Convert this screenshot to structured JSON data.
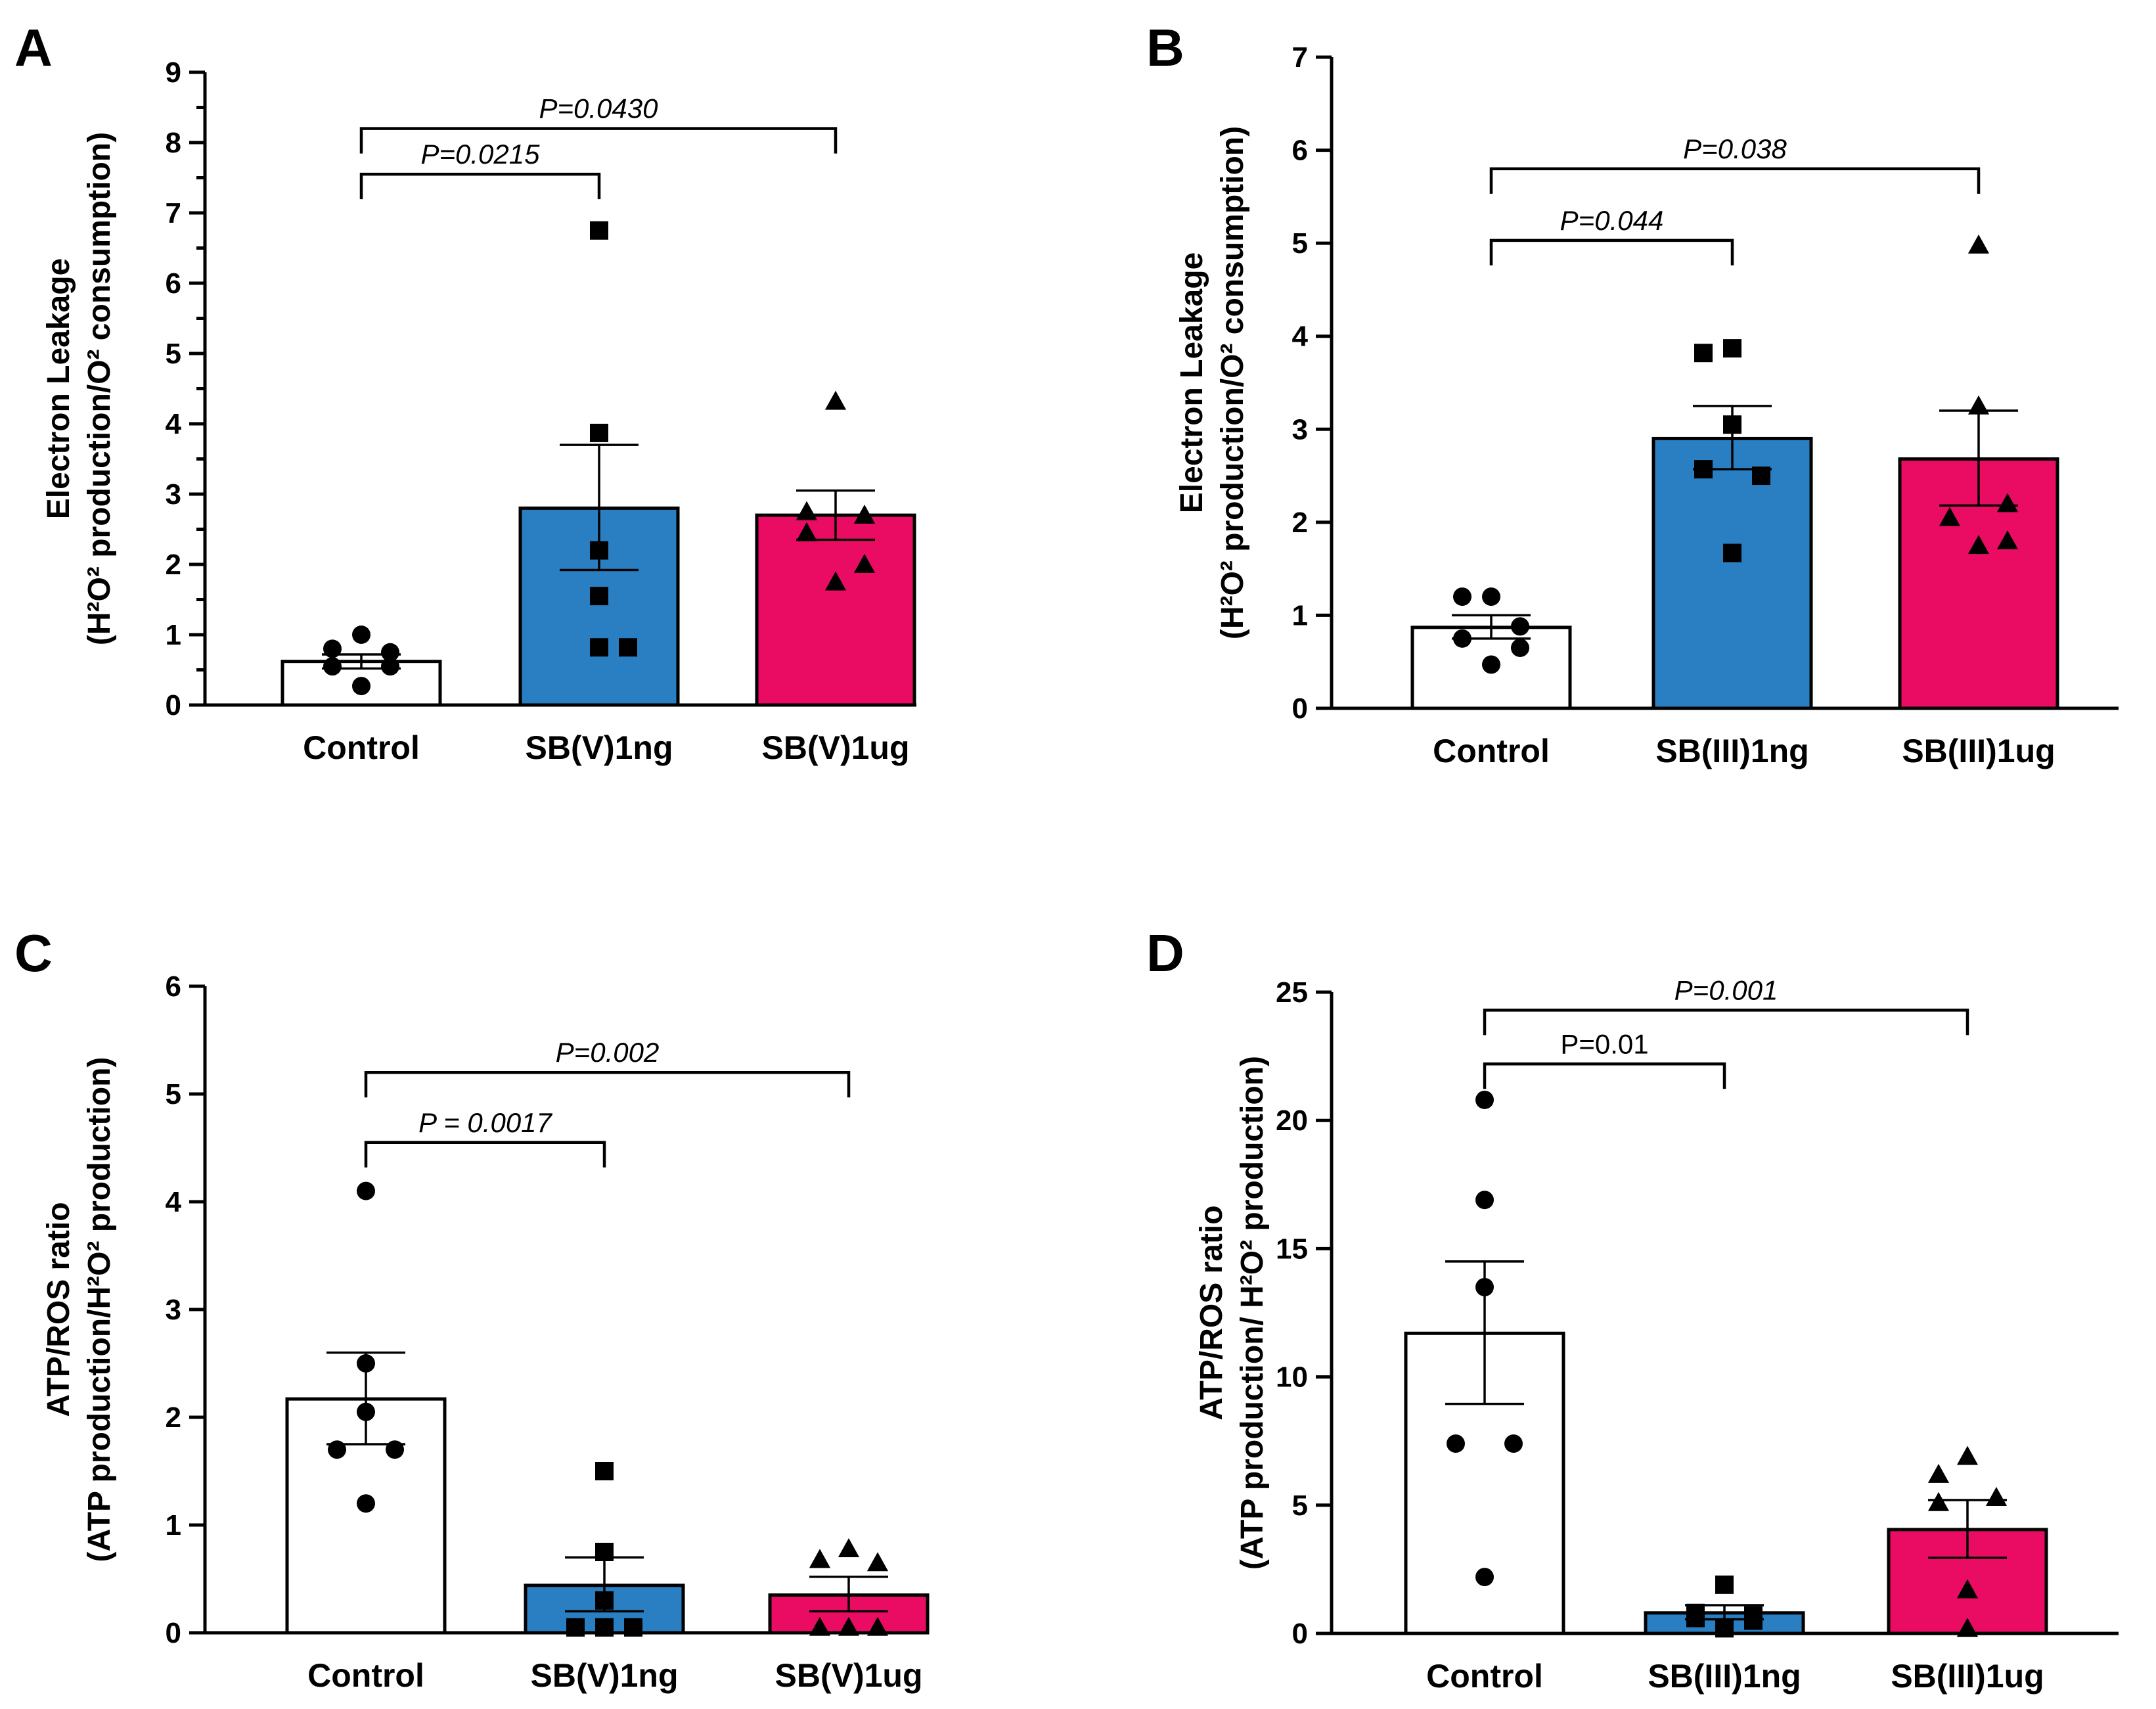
{
  "figure": {
    "panels": [
      "A",
      "B",
      "C",
      "D"
    ],
    "colors": {
      "control": "#ffffff",
      "low_dose": "#2a7fc2",
      "high_dose": "#ea0c63",
      "ink": "#000000"
    }
  },
  "chart_data": [
    {
      "panel": "A",
      "type": "bar",
      "title": "",
      "ylabel_line1": "Electron Leakage",
      "ylabel_line2": "(H²O² production/O² consumption)",
      "xlabel": "",
      "categories": [
        "Control",
        "SB(V)1ng",
        "SB(V)1ug"
      ],
      "ylim": [
        0,
        9
      ],
      "yticks": [
        0,
        1,
        2,
        3,
        4,
        5,
        6,
        7,
        8,
        9
      ],
      "minor_ticks": true,
      "grid": false,
      "legend": "none",
      "series": [
        {
          "name": "mean",
          "values": [
            0.62,
            2.8,
            2.7
          ]
        }
      ],
      "error_bars": [
        {
          "lower": 0.52,
          "upper": 0.72
        },
        {
          "lower": 1.92,
          "upper": 3.7
        },
        {
          "lower": 2.35,
          "upper": 3.05
        }
      ],
      "points": [
        [
          1.0,
          0.8,
          0.75,
          0.55,
          0.55,
          0.27
        ],
        [
          6.75,
          3.87,
          2.2,
          1.55,
          0.82,
          0.82
        ],
        [
          4.32,
          2.75,
          2.7,
          2.45,
          2.0,
          1.75
        ]
      ],
      "markers": [
        "circle",
        "square",
        "triangle"
      ],
      "comparisons": [
        {
          "from": 0,
          "to": 1,
          "label": "P=0.0215",
          "bracket_y": 7.55,
          "italic": true
        },
        {
          "from": 0,
          "to": 2,
          "label": "P=0.0430",
          "bracket_y": 8.2,
          "italic": true
        }
      ]
    },
    {
      "panel": "B",
      "type": "bar",
      "title": "",
      "ylabel_line1": "Electron Leakage",
      "ylabel_line2": "(H²O² production/O² consumption)",
      "xlabel": "",
      "categories": [
        "Control",
        "SB(III)1ng",
        "SB(III)1ug"
      ],
      "ylim": [
        0,
        7
      ],
      "yticks": [
        0,
        1,
        2,
        3,
        4,
        5,
        6,
        7
      ],
      "minor_ticks": false,
      "grid": false,
      "legend": "none",
      "series": [
        {
          "name": "mean",
          "values": [
            0.87,
            2.9,
            2.68
          ]
        }
      ],
      "error_bars": [
        {
          "lower": 0.75,
          "upper": 1.0
        },
        {
          "lower": 2.57,
          "upper": 3.25
        },
        {
          "lower": 2.18,
          "upper": 3.2
        }
      ],
      "points": [
        [
          1.2,
          1.2,
          0.88,
          0.75,
          0.65,
          0.47
        ],
        [
          3.87,
          3.82,
          3.05,
          2.57,
          2.5,
          1.67
        ],
        [
          4.98,
          3.25,
          2.2,
          2.05,
          1.8,
          1.75
        ]
      ],
      "markers": [
        "circle",
        "square",
        "triangle"
      ],
      "comparisons": [
        {
          "from": 0,
          "to": 1,
          "label": "P=0.044",
          "bracket_y": 5.03,
          "italic": true
        },
        {
          "from": 0,
          "to": 2,
          "label": "P=0.038",
          "bracket_y": 5.8,
          "italic": true
        }
      ]
    },
    {
      "panel": "C",
      "type": "bar",
      "title": "",
      "ylabel_line1": "ATP/ROS ratio",
      "ylabel_line2": "(ATP production/H²O² production)",
      "xlabel": "",
      "categories": [
        "Control",
        "SB(V)1ng",
        "SB(V)1ug"
      ],
      "ylim": [
        0,
        6
      ],
      "yticks": [
        0,
        1,
        2,
        3,
        4,
        5,
        6
      ],
      "minor_ticks": false,
      "grid": false,
      "legend": "none",
      "series": [
        {
          "name": "mean",
          "values": [
            2.17,
            0.44,
            0.35
          ]
        }
      ],
      "error_bars": [
        {
          "lower": 1.75,
          "upper": 2.6
        },
        {
          "lower": 0.2,
          "upper": 0.7
        },
        {
          "lower": 0.2,
          "upper": 0.52
        }
      ],
      "points": [
        [
          4.1,
          2.5,
          2.05,
          1.7,
          1.7,
          1.2
        ],
        [
          1.5,
          0.75,
          0.3,
          0.05,
          0.05,
          0.05
        ],
        [
          0.78,
          0.68,
          0.65,
          0.05,
          0.05,
          0.05
        ]
      ],
      "markers": [
        "circle",
        "square",
        "triangle"
      ],
      "comparisons": [
        {
          "from": 0,
          "to": 1,
          "label": "P = 0.0017",
          "bracket_y": 4.55,
          "italic": true
        },
        {
          "from": 0,
          "to": 2,
          "label": "P=0.002",
          "bracket_y": 5.2,
          "italic": true
        }
      ]
    },
    {
      "panel": "D",
      "type": "bar",
      "title": "",
      "ylabel_line1": "ATP/ROS ratio",
      "ylabel_line2": "(ATP production/ H²O² production)",
      "xlabel": "",
      "categories": [
        "Control",
        "SB(III)1ng",
        "SB(III)1ug"
      ],
      "ylim": [
        0,
        25
      ],
      "yticks": [
        0,
        5,
        10,
        15,
        20,
        25
      ],
      "minor_ticks": false,
      "grid": false,
      "legend": "none",
      "series": [
        {
          "name": "mean",
          "values": [
            11.7,
            0.8,
            4.05
          ]
        }
      ],
      "error_bars": [
        {
          "lower": 8.95,
          "upper": 14.5
        },
        {
          "lower": 0.55,
          "upper": 1.1
        },
        {
          "lower": 2.95,
          "upper": 5.2
        }
      ],
      "points": [
        [
          20.8,
          16.9,
          13.5,
          7.4,
          7.4,
          2.2
        ],
        [
          1.9,
          0.8,
          0.7,
          0.6,
          0.5,
          0.2
        ],
        [
          6.9,
          6.2,
          5.3,
          5.1,
          1.7,
          0.2
        ]
      ],
      "markers": [
        "circle",
        "square",
        "triangle"
      ],
      "comparisons": [
        {
          "from": 0,
          "to": 1,
          "label": "P=0.01",
          "bracket_y": 22.2,
          "italic": false
        },
        {
          "from": 0,
          "to": 2,
          "label": "P=0.001",
          "bracket_y": 24.3,
          "italic": true
        }
      ]
    }
  ]
}
